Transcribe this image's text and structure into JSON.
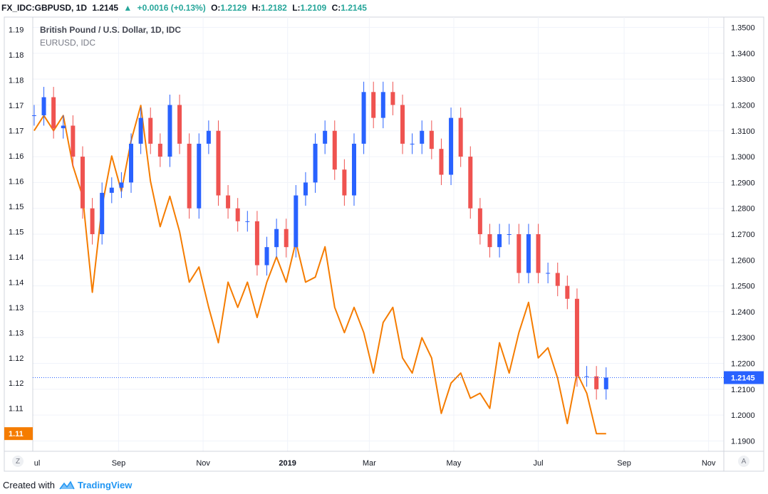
{
  "header": {
    "symbol": "FX_IDC:GBPUSD, 1D",
    "last": "1.2145",
    "change_icon": "triangle-up-icon",
    "change": "+0.0016 (+0.13%)",
    "o_label": "O:",
    "o": "1.2129",
    "h_label": "H:",
    "h": "1.2182",
    "l_label": "L:",
    "l": "1.2109",
    "c_label": "C:",
    "c": "1.2145"
  },
  "legend": {
    "main": "British Pound / U.S. Dollar, 1D, IDC",
    "compare": "EURUSD, IDC"
  },
  "buttons": {
    "zoom": "Z",
    "auto": "A"
  },
  "footer": {
    "created_with": "Created with",
    "brand": "TradingView",
    "brand_icon": "tradingview-logo-icon"
  },
  "colors": {
    "up": "#2962ff",
    "down": "#ef5350",
    "compare": "#f57c00",
    "price_line": "#2962ff"
  },
  "chart_data": {
    "type": "candlestick",
    "series": [
      {
        "name": "British Pound / U.S. Dollar, 1D, IDC",
        "axis": "right",
        "style": "candles",
        "points": [
          [
            "2018-07-02",
            1.316
          ],
          [
            "2018-07-09",
            1.323
          ],
          [
            "2018-07-16",
            1.311
          ],
          [
            "2018-07-23",
            1.312
          ],
          [
            "2018-07-30",
            1.3
          ],
          [
            "2018-08-06",
            1.28
          ],
          [
            "2018-08-13",
            1.27
          ],
          [
            "2018-08-20",
            1.286
          ],
          [
            "2018-08-27",
            1.288
          ],
          [
            "2018-09-03",
            1.29
          ],
          [
            "2018-09-10",
            1.305
          ],
          [
            "2018-09-17",
            1.315
          ],
          [
            "2018-09-24",
            1.305
          ],
          [
            "2018-10-01",
            1.3
          ],
          [
            "2018-10-08",
            1.32
          ],
          [
            "2018-10-15",
            1.305
          ],
          [
            "2018-10-22",
            1.28
          ],
          [
            "2018-10-29",
            1.305
          ],
          [
            "2018-11-05",
            1.31
          ],
          [
            "2018-11-12",
            1.285
          ],
          [
            "2018-11-19",
            1.28
          ],
          [
            "2018-11-26",
            1.275
          ],
          [
            "2018-12-03",
            1.275
          ],
          [
            "2018-12-10",
            1.258
          ],
          [
            "2018-12-17",
            1.265
          ],
          [
            "2018-12-24",
            1.272
          ],
          [
            "2018-12-31",
            1.265
          ],
          [
            "2019-01-07",
            1.285
          ],
          [
            "2019-01-14",
            1.29
          ],
          [
            "2019-01-21",
            1.305
          ],
          [
            "2019-01-28",
            1.31
          ],
          [
            "2019-02-04",
            1.295
          ],
          [
            "2019-02-11",
            1.285
          ],
          [
            "2019-02-18",
            1.305
          ],
          [
            "2019-02-25",
            1.325
          ],
          [
            "2019-03-04",
            1.315
          ],
          [
            "2019-03-11",
            1.325
          ],
          [
            "2019-03-18",
            1.32
          ],
          [
            "2019-03-25",
            1.305
          ],
          [
            "2019-04-01",
            1.305
          ],
          [
            "2019-04-08",
            1.31
          ],
          [
            "2019-04-15",
            1.303
          ],
          [
            "2019-04-22",
            1.293
          ],
          [
            "2019-04-29",
            1.315
          ],
          [
            "2019-05-06",
            1.3
          ],
          [
            "2019-05-13",
            1.28
          ],
          [
            "2019-05-20",
            1.27
          ],
          [
            "2019-05-27",
            1.265
          ],
          [
            "2019-06-03",
            1.27
          ],
          [
            "2019-06-10",
            1.27
          ],
          [
            "2019-06-17",
            1.255
          ],
          [
            "2019-06-24",
            1.27
          ],
          [
            "2019-07-01",
            1.255
          ],
          [
            "2019-07-08",
            1.255
          ],
          [
            "2019-07-15",
            1.25
          ],
          [
            "2019-07-22",
            1.245
          ],
          [
            "2019-07-29",
            1.215
          ],
          [
            "2019-08-05",
            1.215
          ],
          [
            "2019-08-12",
            1.21
          ],
          [
            "2019-08-19",
            1.2145
          ]
        ]
      },
      {
        "name": "EURUSD, IDC",
        "axis": "left",
        "style": "line",
        "points": [
          [
            "2018-07-02",
            1.17
          ],
          [
            "2018-07-09",
            1.173
          ],
          [
            "2018-07-16",
            1.17
          ],
          [
            "2018-07-23",
            1.173
          ],
          [
            "2018-07-30",
            1.163
          ],
          [
            "2018-08-06",
            1.157
          ],
          [
            "2018-08-13",
            1.138
          ],
          [
            "2018-08-20",
            1.155
          ],
          [
            "2018-08-27",
            1.165
          ],
          [
            "2018-09-03",
            1.158
          ],
          [
            "2018-09-10",
            1.168
          ],
          [
            "2018-09-17",
            1.175
          ],
          [
            "2018-09-24",
            1.16
          ],
          [
            "2018-10-01",
            1.151
          ],
          [
            "2018-10-08",
            1.157
          ],
          [
            "2018-10-15",
            1.15
          ],
          [
            "2018-10-22",
            1.14
          ],
          [
            "2018-10-29",
            1.143
          ],
          [
            "2018-11-05",
            1.135
          ],
          [
            "2018-11-12",
            1.128
          ],
          [
            "2018-11-19",
            1.14
          ],
          [
            "2018-11-26",
            1.135
          ],
          [
            "2018-12-03",
            1.14
          ],
          [
            "2018-12-10",
            1.133
          ],
          [
            "2018-12-17",
            1.14
          ],
          [
            "2018-12-24",
            1.145
          ],
          [
            "2018-12-31",
            1.14
          ],
          [
            "2019-01-07",
            1.148
          ],
          [
            "2019-01-14",
            1.14
          ],
          [
            "2019-01-21",
            1.141
          ],
          [
            "2019-01-28",
            1.147
          ],
          [
            "2019-02-04",
            1.135
          ],
          [
            "2019-02-11",
            1.13
          ],
          [
            "2019-02-18",
            1.135
          ],
          [
            "2019-02-25",
            1.13
          ],
          [
            "2019-03-04",
            1.122
          ],
          [
            "2019-03-11",
            1.132
          ],
          [
            "2019-03-18",
            1.135
          ],
          [
            "2019-03-25",
            1.125
          ],
          [
            "2019-04-01",
            1.122
          ],
          [
            "2019-04-08",
            1.129
          ],
          [
            "2019-04-15",
            1.125
          ],
          [
            "2019-04-22",
            1.114
          ],
          [
            "2019-04-29",
            1.12
          ],
          [
            "2019-05-06",
            1.122
          ],
          [
            "2019-05-13",
            1.117
          ],
          [
            "2019-05-20",
            1.118
          ],
          [
            "2019-05-27",
            1.115
          ],
          [
            "2019-06-03",
            1.128
          ],
          [
            "2019-06-10",
            1.122
          ],
          [
            "2019-06-17",
            1.13
          ],
          [
            "2019-06-24",
            1.136
          ],
          [
            "2019-07-01",
            1.125
          ],
          [
            "2019-07-08",
            1.127
          ],
          [
            "2019-07-15",
            1.121
          ],
          [
            "2019-07-22",
            1.112
          ],
          [
            "2019-07-29",
            1.122
          ],
          [
            "2019-08-05",
            1.118
          ],
          [
            "2019-08-12",
            1.11
          ],
          [
            "2019-08-19",
            1.11
          ]
        ]
      }
    ],
    "price_line": 1.2145,
    "last_labels": {
      "right": "1.2145",
      "left": "1.11"
    },
    "x_ticks": [
      {
        "date": "2018-07-01",
        "label": "ul"
      },
      {
        "date": "2018-09-01",
        "label": "Sep"
      },
      {
        "date": "2018-11-01",
        "label": "Nov"
      },
      {
        "date": "2019-01-01",
        "label": "2019"
      },
      {
        "date": "2019-03-01",
        "label": "Mar"
      },
      {
        "date": "2019-05-01",
        "label": "May"
      },
      {
        "date": "2019-07-01",
        "label": "Jul"
      },
      {
        "date": "2019-09-01",
        "label": "Sep"
      },
      {
        "date": "2019-11-01",
        "label": "Nov"
      }
    ],
    "x_range": [
      "2018-07-01",
      "2019-11-12"
    ],
    "left_axis": {
      "range": [
        1.1065,
        1.1925
      ],
      "ticks": [
        1.19,
        1.18,
        1.18,
        1.17,
        1.17,
        1.16,
        1.16,
        1.15,
        1.15,
        1.14,
        1.14,
        1.13,
        1.13,
        1.12,
        1.12,
        1.11,
        1.11
      ],
      "tick_values": [
        1.19,
        1.185,
        1.18,
        1.175,
        1.17,
        1.165,
        1.16,
        1.155,
        1.15,
        1.145,
        1.14,
        1.135,
        1.13,
        1.125,
        1.12,
        1.115,
        1.11
      ]
    },
    "right_axis": {
      "range": [
        1.186,
        1.354
      ],
      "ticks": [
        "1.3500",
        "1.3400",
        "1.3300",
        "1.3200",
        "1.3100",
        "1.3000",
        "1.2900",
        "1.2800",
        "1.2700",
        "1.2600",
        "1.2500",
        "1.2400",
        "1.2300",
        "1.2200",
        "1.2100",
        "1.2000",
        "1.1900"
      ],
      "tick_values": [
        1.35,
        1.34,
        1.33,
        1.32,
        1.31,
        1.3,
        1.29,
        1.28,
        1.27,
        1.26,
        1.25,
        1.24,
        1.23,
        1.22,
        1.21,
        1.2,
        1.19
      ]
    },
    "grid": true,
    "legend_position": "top-left"
  }
}
